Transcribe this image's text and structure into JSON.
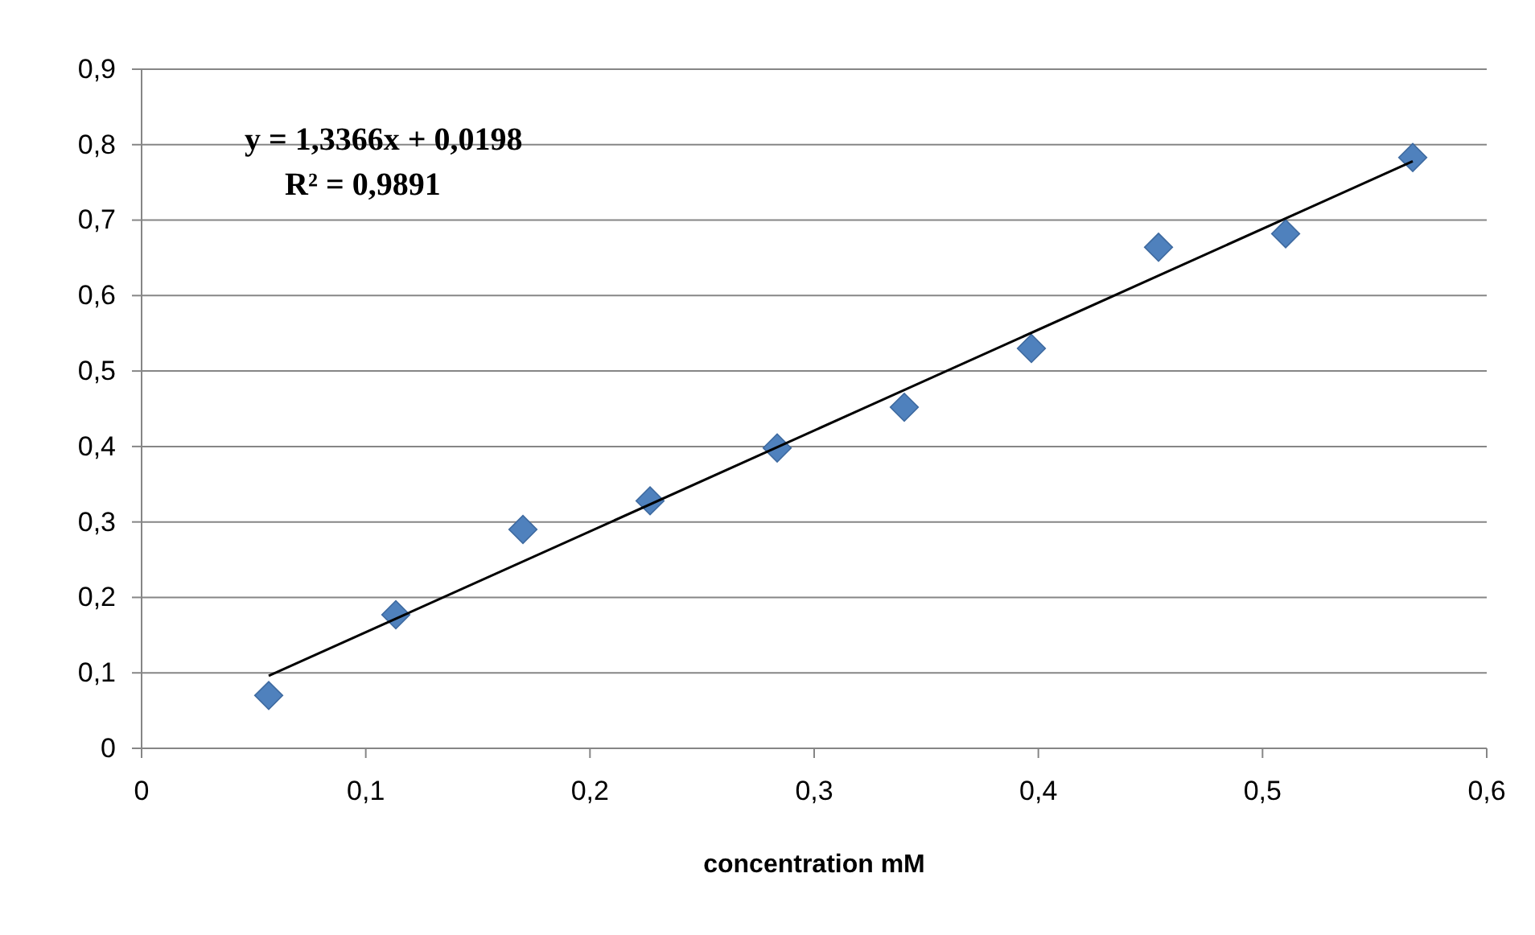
{
  "chart_data": {
    "type": "scatter",
    "xlabel": "concentration mM",
    "grid": "y",
    "xlim": [
      0,
      0.6
    ],
    "ylim": [
      0,
      0.9
    ],
    "xticks": [
      0,
      {
        "value": 0.1,
        "label": "0,1"
      },
      {
        "value": 0.2,
        "label": "0,2"
      },
      {
        "value": 0.3,
        "label": "0,3"
      },
      {
        "value": 0.4,
        "label": "0,4"
      },
      {
        "value": 0.5,
        "label": "0,5"
      },
      {
        "value": 0.6,
        "label": "0,6"
      }
    ],
    "yticks": [
      0,
      {
        "value": 0.1,
        "label": "0,1"
      },
      {
        "value": 0.2,
        "label": "0,2"
      },
      {
        "value": 0.3,
        "label": "0,3"
      },
      {
        "value": 0.4,
        "label": "0,4"
      },
      {
        "value": 0.5,
        "label": "0,5"
      },
      {
        "value": 0.6,
        "label": "0,6"
      },
      {
        "value": 0.7,
        "label": "0,7"
      },
      {
        "value": 0.8,
        "label": "0,8"
      },
      {
        "value": 0.9,
        "label": "0,9"
      }
    ],
    "series": [
      {
        "marker": "diamond",
        "color": "#4f81bd",
        "x": [
          0.0567,
          0.1134,
          0.1701,
          0.2268,
          0.2835,
          0.3402,
          0.3969,
          0.4536,
          0.5103,
          0.567
        ],
        "values": [
          0.07,
          0.177,
          0.29,
          0.328,
          0.398,
          0.452,
          0.53,
          0.664,
          0.682,
          0.783
        ]
      },
      {
        "type": "line",
        "color": "#000000",
        "x": [
          0.0567,
          0.567
        ],
        "values": [
          0.096,
          0.778
        ]
      }
    ],
    "annotations": [
      "y = 1,3366x + 0,0198",
      "R² = 0,9891"
    ]
  }
}
